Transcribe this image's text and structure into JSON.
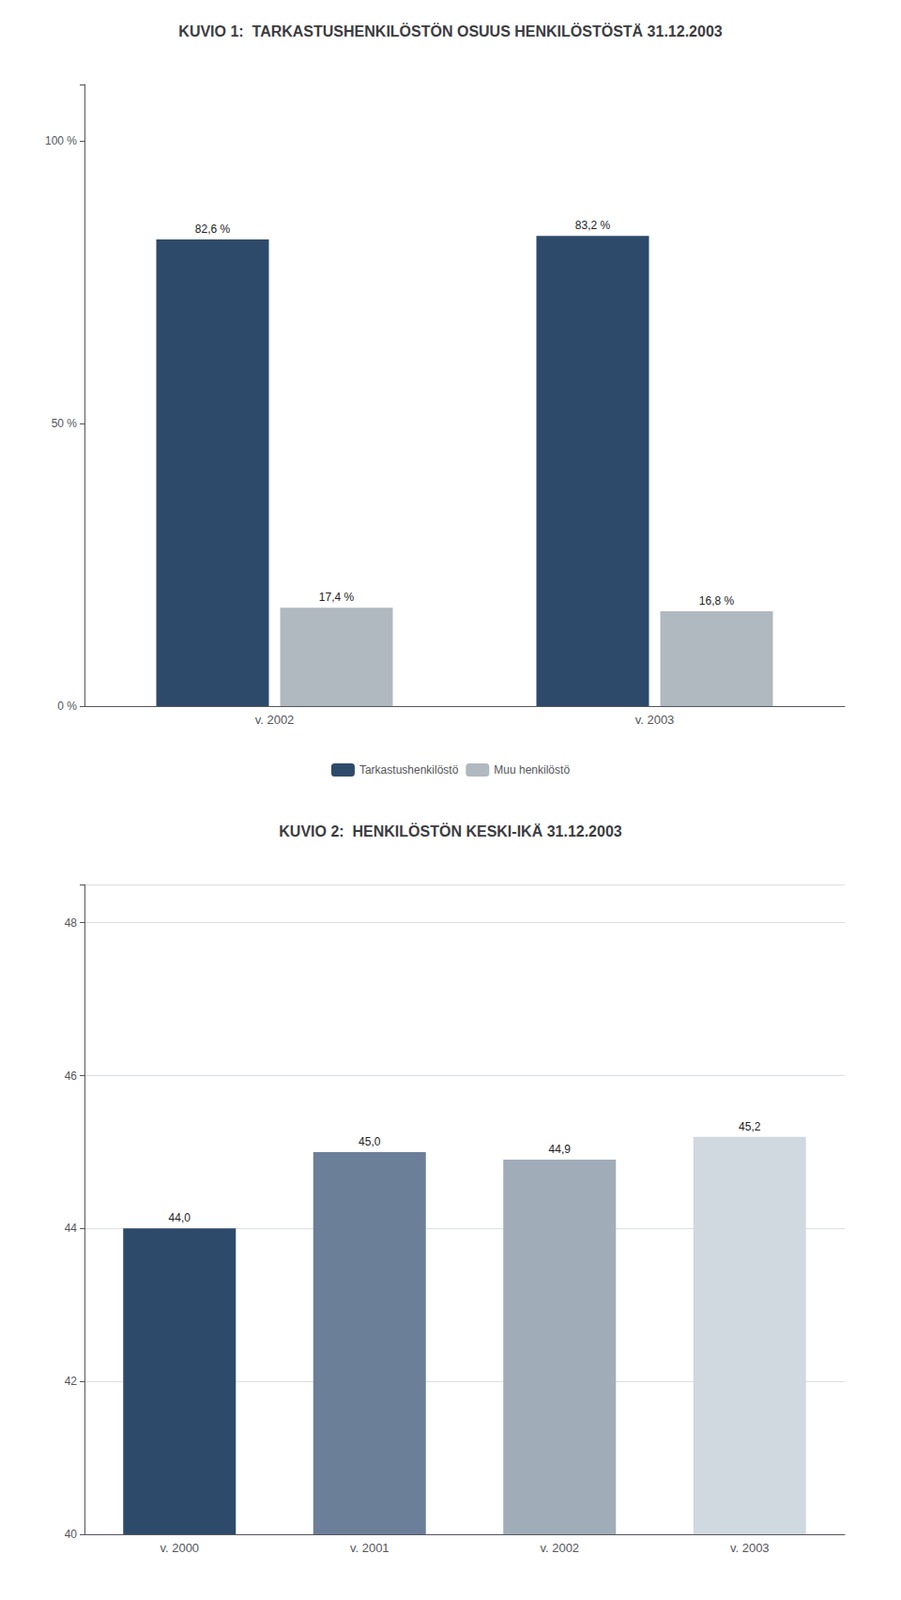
{
  "chart_data": [
    {
      "type": "bar",
      "title": "KUVIO 1:  TARKASTUSHENKILÖSTÖN OSUUS HENKILÖSTÖSTÄ 31.12.2003",
      "categories": [
        "v. 2002",
        "v. 2003"
      ],
      "series": [
        {
          "name": "Tarkastushenkilöstö",
          "color": "#2e4a6b",
          "values": [
            82.6,
            83.2
          ],
          "value_labels": [
            "82,6 %",
            "83,2 %"
          ]
        },
        {
          "name": "Muu henkilöstö",
          "color": "#b0b8c0",
          "values": [
            17.4,
            16.8
          ],
          "value_labels": [
            "17,4 %",
            "16,8 %"
          ]
        }
      ],
      "ylim": [
        0,
        110
      ],
      "yticks": [
        {
          "value": 0,
          "label": "0 %"
        },
        {
          "value": 50,
          "label": "50 %"
        },
        {
          "value": 100,
          "label": "100 %"
        }
      ],
      "grid": false,
      "legend": "bottom",
      "data_labels": true
    },
    {
      "type": "bar",
      "title": "KUVIO 2:  HENKILÖSTÖN KESKI-IKÄ 31.12.2003",
      "categories": [
        "v. 2000",
        "v. 2001",
        "v. 2002",
        "v. 2003"
      ],
      "values": [
        44.0,
        45.0,
        44.9,
        45.2
      ],
      "value_labels": [
        "44,0",
        "45,0",
        "44,9",
        "45,2"
      ],
      "colors": [
        "#2e4a6b",
        "#6b7f99",
        "#a0adb8",
        "#d0d8e0"
      ],
      "ylim": [
        40,
        48.5
      ],
      "yticks": [
        40,
        42,
        44,
        46,
        48
      ],
      "grid": true,
      "data_labels": true
    }
  ]
}
